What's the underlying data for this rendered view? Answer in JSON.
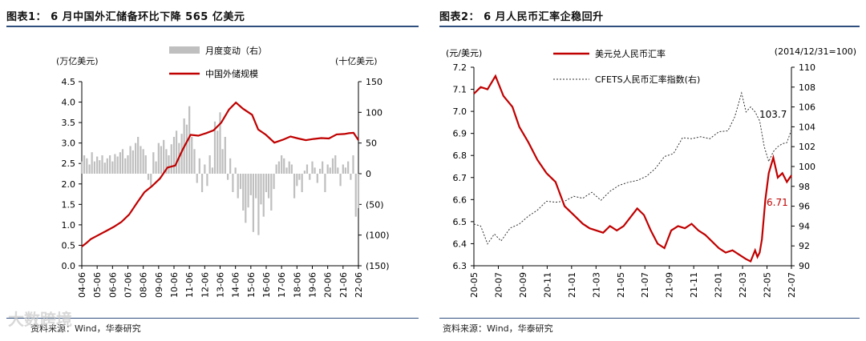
{
  "figures": [
    {
      "title": "图表1： 6 月中国外汇储备环比下降 565 亿美元",
      "source": "资料来源：Wind，华泰研究"
    },
    {
      "title": "图表2： 6 月人民币汇率企稳回升",
      "source": "资料来源：Wind，华泰研究"
    }
  ],
  "watermark": "大数跨境",
  "colors": {
    "rule": "#2f4f7f",
    "red": "#c00000",
    "bar": "#bfbfbf",
    "dash": "#333333"
  },
  "chart_data": [
    {
      "type": "bar+line",
      "left_unit": "(万亿美元)",
      "right_unit": "(十亿美元)",
      "left_ticks": [
        "4.5",
        "4.0",
        "3.5",
        "3.0",
        "2.5",
        "2.0",
        "1.5",
        "1.0",
        "0.5",
        "0.0"
      ],
      "right_ticks": [
        "150",
        "100",
        "50",
        "0",
        "(50)",
        "(100)",
        "(150)"
      ],
      "x_ticks": [
        "04-06",
        "05-06",
        "06-06",
        "07-06",
        "08-06",
        "09-06",
        "10-06",
        "11-06",
        "12-06",
        "13-06",
        "14-06",
        "15-06",
        "16-06",
        "17-06",
        "18-06",
        "19-06",
        "20-06",
        "21-06",
        "22-06"
      ],
      "ylim_left": [
        0,
        4.5
      ],
      "ylim_right": [
        -150,
        150
      ],
      "series": [
        {
          "name": "月度变动（右）",
          "axis": "right",
          "x": [
            2004.42,
            2004.58,
            2004.75,
            2004.92,
            2005.08,
            2005.25,
            2005.42,
            2005.58,
            2005.75,
            2005.92,
            2006.08,
            2006.25,
            2006.42,
            2006.58,
            2006.75,
            2006.92,
            2007.08,
            2007.25,
            2007.42,
            2007.58,
            2007.75,
            2007.92,
            2008.08,
            2008.25,
            2008.42,
            2008.58,
            2008.75,
            2008.92,
            2009.08,
            2009.25,
            2009.42,
            2009.58,
            2009.75,
            2009.92,
            2010.08,
            2010.25,
            2010.42,
            2010.58,
            2010.75,
            2010.92,
            2011.08,
            2011.25,
            2011.42,
            2011.58,
            2011.75,
            2011.92,
            2012.08,
            2012.25,
            2012.42,
            2012.58,
            2012.75,
            2012.92,
            2013.08,
            2013.25,
            2013.42,
            2013.58,
            2013.75,
            2013.92,
            2014.08,
            2014.25,
            2014.42,
            2014.58,
            2014.75,
            2014.92,
            2015.08,
            2015.25,
            2015.42,
            2015.58,
            2015.75,
            2015.92,
            2016.08,
            2016.25,
            2016.42,
            2016.58,
            2016.75,
            2016.92,
            2017.08,
            2017.25,
            2017.42,
            2017.58,
            2017.75,
            2017.92,
            2018.08,
            2018.25,
            2018.42,
            2018.58,
            2018.75,
            2018.92,
            2019.08,
            2019.25,
            2019.42,
            2019.58,
            2019.75,
            2019.92,
            2020.08,
            2020.25,
            2020.42,
            2020.58,
            2020.75,
            2020.92,
            2021.08,
            2021.25,
            2021.42,
            2021.58,
            2021.75,
            2021.92,
            2022.08,
            2022.25,
            2022.42
          ],
          "values": [
            20,
            30,
            25,
            15,
            35,
            20,
            28,
            22,
            30,
            18,
            25,
            30,
            20,
            32,
            28,
            35,
            40,
            25,
            30,
            45,
            38,
            50,
            60,
            45,
            40,
            30,
            -10,
            -20,
            35,
            20,
            50,
            45,
            55,
            40,
            30,
            48,
            60,
            70,
            50,
            65,
            90,
            80,
            110,
            60,
            40,
            -15,
            25,
            -30,
            15,
            -20,
            30,
            10,
            85,
            70,
            100,
            40,
            60,
            -10,
            25,
            -30,
            10,
            -40,
            -25,
            -60,
            -80,
            -55,
            -35,
            -95,
            -40,
            -100,
            -50,
            -70,
            -30,
            -40,
            -60,
            -25,
            15,
            20,
            30,
            25,
            10,
            20,
            15,
            -40,
            -20,
            -10,
            -30,
            5,
            15,
            -10,
            20,
            10,
            -15,
            8,
            20,
            -30,
            15,
            10,
            25,
            30,
            10,
            -20,
            15,
            10,
            20,
            -10,
            30,
            -70,
            -56
          ]
        },
        {
          "name": "中国外储规模",
          "axis": "left",
          "x": [
            2004.42,
            2004.7,
            2005.0,
            2005.5,
            2006.0,
            2006.5,
            2007.0,
            2007.5,
            2008.0,
            2008.5,
            2009.0,
            2009.5,
            2010.0,
            2010.5,
            2011.0,
            2011.5,
            2012.0,
            2012.5,
            2013.0,
            2013.5,
            2014.0,
            2014.45,
            2014.9,
            2015.5,
            2015.9,
            2016.4,
            2016.95,
            2017.5,
            2018.0,
            2018.5,
            2019.0,
            2019.5,
            2020.0,
            2020.5,
            2021.0,
            2021.5,
            2021.8,
            2022.1,
            2022.42
          ],
          "values": [
            0.47,
            0.55,
            0.65,
            0.75,
            0.85,
            0.95,
            1.07,
            1.25,
            1.53,
            1.8,
            1.95,
            2.13,
            2.4,
            2.45,
            2.85,
            3.2,
            3.18,
            3.24,
            3.31,
            3.5,
            3.82,
            3.99,
            3.84,
            3.69,
            3.33,
            3.2,
            3.01,
            3.08,
            3.16,
            3.11,
            3.07,
            3.1,
            3.12,
            3.11,
            3.21,
            3.22,
            3.24,
            3.25,
            3.07
          ]
        }
      ]
    },
    {
      "type": "line",
      "left_unit": "(元/美元)",
      "right_unit": "(2014/12/31=100)",
      "left_ticks": [
        "7.2",
        "7.1",
        "7.0",
        "6.9",
        "6.8",
        "6.7",
        "6.6",
        "6.5",
        "6.4",
        "6.3"
      ],
      "right_ticks": [
        "110",
        "108",
        "106",
        "104",
        "102",
        "100",
        "98",
        "96",
        "94",
        "92",
        "90"
      ],
      "x_ticks": [
        "20-05",
        "20-07",
        "20-09",
        "20-11",
        "21-01",
        "21-03",
        "21-05",
        "21-07",
        "21-09",
        "21-11",
        "22-01",
        "22-03",
        "22-05",
        "22-07"
      ],
      "ylim_left": [
        6.3,
        7.2
      ],
      "ylim_right": [
        90,
        110
      ],
      "series": [
        {
          "name": "美元兑人民币汇率",
          "axis": "left",
          "x": [
            0,
            0.3,
            0.6,
            0.95,
            1.3,
            1.7,
            2.0,
            2.4,
            2.8,
            3.2,
            3.6,
            4.0,
            4.4,
            4.8,
            5.1,
            5.4,
            5.7,
            6.0,
            6.3,
            6.6,
            6.9,
            7.2,
            7.5,
            7.8,
            8.1,
            8.4,
            8.7,
            9.0,
            9.3,
            9.6,
            9.9,
            10.2,
            10.5,
            10.8,
            11.1,
            11.4,
            11.7,
            12.0,
            12.2,
            12.4,
            12.5,
            12.6,
            12.7,
            12.85,
            13.0,
            13.2,
            13.4,
            13.6,
            13.8,
            14.0
          ],
          "values": [
            7.08,
            7.11,
            7.1,
            7.16,
            7.07,
            7.02,
            6.93,
            6.86,
            6.78,
            6.72,
            6.68,
            6.57,
            6.53,
            6.49,
            6.47,
            6.46,
            6.45,
            6.48,
            6.46,
            6.48,
            6.52,
            6.56,
            6.53,
            6.46,
            6.4,
            6.38,
            6.46,
            6.48,
            6.47,
            6.49,
            6.46,
            6.44,
            6.41,
            6.38,
            6.36,
            6.37,
            6.35,
            6.33,
            6.32,
            6.37,
            6.34,
            6.36,
            6.42,
            6.6,
            6.72,
            6.79,
            6.7,
            6.72,
            6.68,
            6.71
          ]
        },
        {
          "name": "CFETS人民币汇率指数(右)",
          "axis": "right",
          "x": [
            0,
            0.3,
            0.6,
            0.9,
            1.2,
            1.6,
            2.0,
            2.4,
            2.8,
            3.2,
            3.6,
            4.0,
            4.4,
            4.8,
            5.2,
            5.6,
            6.0,
            6.4,
            6.8,
            7.2,
            7.6,
            8.0,
            8.4,
            8.8,
            9.2,
            9.6,
            10.0,
            10.4,
            10.8,
            11.2,
            11.5,
            11.8,
            12.0,
            12.2,
            12.4,
            12.6,
            12.8,
            13.0,
            13.2,
            13.4,
            13.6,
            13.8,
            14.0
          ],
          "values": [
            94.2,
            94.0,
            92.2,
            93.2,
            92.5,
            93.8,
            94.2,
            95.0,
            95.6,
            96.5,
            96.4,
            96.5,
            97.0,
            96.8,
            97.4,
            96.6,
            97.5,
            98.1,
            98.4,
            98.6,
            99.0,
            99.8,
            101.0,
            101.3,
            102.9,
            102.8,
            103.0,
            102.8,
            103.5,
            103.6,
            105.0,
            107.4,
            105.5,
            106.0,
            105.5,
            104.6,
            102.0,
            100.5,
            101.5,
            102.0,
            102.3,
            102.4,
            103.7
          ]
        }
      ],
      "annotations": [
        "103.7",
        "6.71"
      ]
    }
  ]
}
